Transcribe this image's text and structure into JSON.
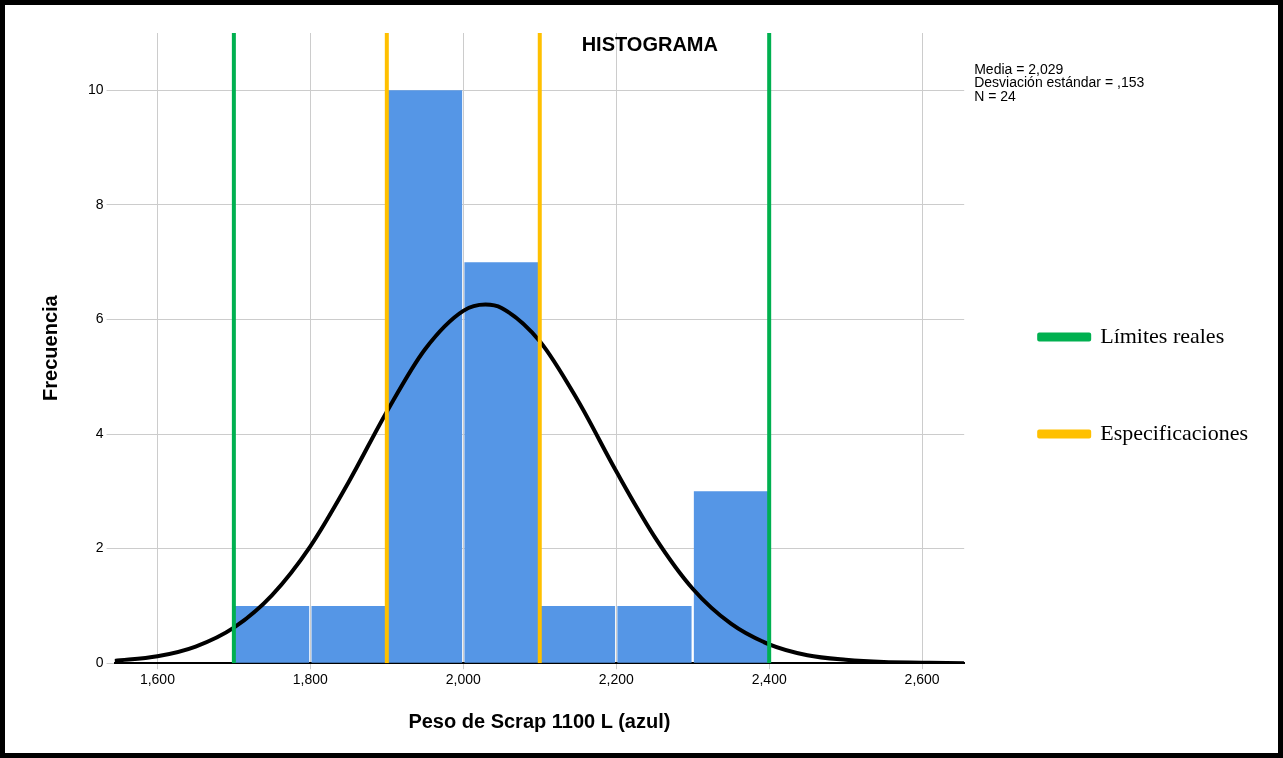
{
  "chart_data": {
    "type": "histogram",
    "title": "HISTOGRAMA",
    "xlabel": "Peso de Scrap 1100 L (azul)",
    "ylabel": "Frecuencia",
    "bins": [
      1700,
      1800,
      1900,
      2000,
      2100,
      2200,
      2300,
      2400
    ],
    "values": [
      1,
      1,
      10,
      7,
      1,
      1,
      3
    ],
    "color": "#5596e6",
    "series": [
      {
        "type": "line",
        "color": "#000000",
        "x": [
          1544,
          1600,
          1650,
          1700,
          1750,
          1800,
          1850,
          1900,
          1950,
          2000,
          2029,
          2050,
          2100,
          2150,
          2200,
          2250,
          2300,
          2350,
          2400,
          2450,
          2500,
          2550,
          2600,
          2655
        ],
        "values": [
          0.04,
          0.12,
          0.29,
          0.62,
          1.19,
          2.04,
          3.16,
          4.39,
          5.48,
          6.15,
          6.26,
          6.2,
          5.62,
          4.58,
          3.35,
          2.21,
          1.3,
          0.69,
          0.33,
          0.14,
          0.06,
          0.02,
          0.01,
          0
        ]
      },
      {
        "type": "line",
        "name": "Límites reales",
        "color": "#00b050",
        "x": [
          1700,
          1700
        ],
        "values": [
          0,
          11
        ]
      },
      {
        "type": "line",
        "color": "#00b050",
        "x": [
          2400,
          2400
        ],
        "values": [
          0,
          11
        ]
      },
      {
        "type": "line",
        "name": "Especificaciones",
        "color": "#ffc000",
        "x": [
          1900,
          1900
        ],
        "values": [
          0,
          11
        ]
      },
      {
        "type": "line",
        "color": "#ffc000",
        "x": [
          2100,
          2100
        ],
        "values": [
          0,
          11
        ]
      }
    ],
    "xlim": [
      1544,
      2655
    ],
    "xticks": [
      {
        "value": 1600,
        "label": "1,600"
      },
      {
        "value": 1800,
        "label": "1,800"
      },
      {
        "value": 2000,
        "label": "2,000"
      },
      {
        "value": 2200,
        "label": "2,200"
      },
      {
        "value": 2400,
        "label": "2,400"
      },
      {
        "value": 2600,
        "label": "2,600"
      }
    ],
    "ylim": [
      0,
      11
    ],
    "yticks": [
      0,
      2,
      4,
      6,
      8,
      10
    ],
    "grid": true,
    "legend": "right",
    "annotations": [
      "Media = 2,029",
      "Desviación estándar = ,153",
      "N = 24"
    ]
  }
}
